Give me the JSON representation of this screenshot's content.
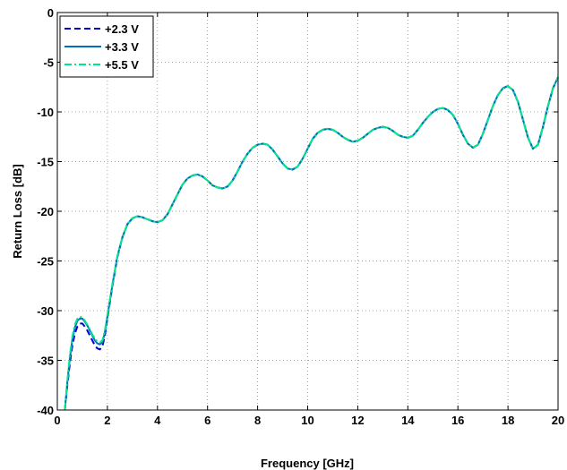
{
  "chart_data": {
    "type": "line",
    "title": "",
    "xlabel": "Frequency [GHz]",
    "ylabel": "Return Loss [dB]",
    "xlim": [
      0,
      20
    ],
    "ylim": [
      -40,
      0
    ],
    "xticks": [
      0,
      2,
      4,
      6,
      8,
      10,
      12,
      14,
      16,
      18,
      20
    ],
    "yticks": [
      0,
      -5,
      -10,
      -15,
      -20,
      -25,
      -30,
      -35,
      -40
    ],
    "grid": true,
    "legend_position": "top-left",
    "series": [
      {
        "name": "+2.3 V",
        "color": "#0000cc",
        "style": "dashed",
        "x": [
          0.3,
          0.4,
          0.5,
          0.6,
          0.7,
          0.8,
          0.9,
          1.0,
          1.1,
          1.2,
          1.3,
          1.4,
          1.5,
          1.6,
          1.7,
          1.8,
          1.9,
          2.0,
          2.2,
          2.4,
          2.6,
          2.8,
          3.0,
          3.2,
          3.4,
          3.6,
          3.8,
          4.0,
          4.2,
          4.4,
          4.6,
          4.8,
          5.0,
          5.2,
          5.4,
          5.6,
          5.8,
          6.0,
          6.2,
          6.4,
          6.6,
          6.8,
          7.0,
          7.2,
          7.4,
          7.6,
          7.8,
          8.0,
          8.2,
          8.4,
          8.6,
          8.8,
          9.0,
          9.2,
          9.4,
          9.6,
          9.8,
          10.0,
          10.2,
          10.4,
          10.6,
          10.8,
          11.0,
          11.2,
          11.4,
          11.6,
          11.8,
          12.0,
          12.2,
          12.4,
          12.6,
          12.8,
          13.0,
          13.2,
          13.4,
          13.6,
          13.8,
          14.0,
          14.2,
          14.4,
          14.6,
          14.8,
          15.0,
          15.2,
          15.4,
          15.6,
          15.8,
          16.0,
          16.2,
          16.4,
          16.6,
          16.8,
          17.0,
          17.2,
          17.4,
          17.6,
          17.8,
          18.0,
          18.2,
          18.4,
          18.6,
          18.8,
          19.0,
          19.2,
          19.4,
          19.6,
          19.8,
          20.0
        ],
        "y": [
          -40.0,
          -37.5,
          -35.3,
          -33.5,
          -32.3,
          -31.6,
          -31.3,
          -31.3,
          -31.6,
          -32.0,
          -32.5,
          -33.0,
          -33.5,
          -33.8,
          -33.9,
          -33.6,
          -32.5,
          -30.8,
          -27.5,
          -24.6,
          -22.6,
          -21.3,
          -20.7,
          -20.5,
          -20.6,
          -20.8,
          -21.0,
          -21.1,
          -20.9,
          -20.3,
          -19.3,
          -18.3,
          -17.3,
          -16.7,
          -16.4,
          -16.3,
          -16.5,
          -16.9,
          -17.4,
          -17.6,
          -17.7,
          -17.5,
          -16.9,
          -16.0,
          -15.0,
          -14.2,
          -13.6,
          -13.3,
          -13.2,
          -13.3,
          -13.8,
          -14.5,
          -15.2,
          -15.7,
          -15.8,
          -15.5,
          -14.7,
          -13.7,
          -12.7,
          -12.1,
          -11.8,
          -11.7,
          -11.8,
          -12.1,
          -12.5,
          -12.8,
          -13.0,
          -12.9,
          -12.6,
          -12.2,
          -11.8,
          -11.6,
          -11.5,
          -11.6,
          -11.9,
          -12.3,
          -12.5,
          -12.6,
          -12.4,
          -11.8,
          -11.1,
          -10.5,
          -10.0,
          -9.7,
          -9.6,
          -9.8,
          -10.3,
          -11.2,
          -12.3,
          -13.2,
          -13.6,
          -13.3,
          -12.2,
          -10.8,
          -9.4,
          -8.3,
          -7.6,
          -7.4,
          -7.8,
          -9.0,
          -10.8,
          -12.6,
          -13.7,
          -13.3,
          -11.5,
          -9.4,
          -7.6,
          -6.5
        ]
      },
      {
        "name": "+3.3 V",
        "color": "#0072bd",
        "style": "solid",
        "x": [
          0.3,
          0.4,
          0.5,
          0.6,
          0.7,
          0.8,
          0.9,
          1.0,
          1.1,
          1.2,
          1.3,
          1.4,
          1.5,
          1.6,
          1.7,
          1.8,
          1.9,
          2.0,
          2.2,
          2.4,
          2.6,
          2.8,
          3.0,
          3.2,
          3.4,
          3.6,
          3.8,
          4.0,
          4.2,
          4.4,
          4.6,
          4.8,
          5.0,
          5.2,
          5.4,
          5.6,
          5.8,
          6.0,
          6.2,
          6.4,
          6.6,
          6.8,
          7.0,
          7.2,
          7.4,
          7.6,
          7.8,
          8.0,
          8.2,
          8.4,
          8.6,
          8.8,
          9.0,
          9.2,
          9.4,
          9.6,
          9.8,
          10.0,
          10.2,
          10.4,
          10.6,
          10.8,
          11.0,
          11.2,
          11.4,
          11.6,
          11.8,
          12.0,
          12.2,
          12.4,
          12.6,
          12.8,
          13.0,
          13.2,
          13.4,
          13.6,
          13.8,
          14.0,
          14.2,
          14.4,
          14.6,
          14.8,
          15.0,
          15.2,
          15.4,
          15.6,
          15.8,
          16.0,
          16.2,
          16.4,
          16.6,
          16.8,
          17.0,
          17.2,
          17.4,
          17.6,
          17.8,
          18.0,
          18.2,
          18.4,
          18.6,
          18.8,
          19.0,
          19.2,
          19.4,
          19.6,
          19.8,
          20.0
        ],
        "y": [
          -40.0,
          -37.2,
          -34.8,
          -32.9,
          -31.7,
          -31.0,
          -30.8,
          -30.8,
          -31.1,
          -31.5,
          -32.0,
          -32.5,
          -33.0,
          -33.3,
          -33.4,
          -33.2,
          -32.2,
          -30.6,
          -27.4,
          -24.5,
          -22.6,
          -21.3,
          -20.7,
          -20.5,
          -20.6,
          -20.8,
          -21.0,
          -21.1,
          -20.9,
          -20.3,
          -19.3,
          -18.3,
          -17.3,
          -16.7,
          -16.4,
          -16.3,
          -16.5,
          -16.9,
          -17.4,
          -17.6,
          -17.7,
          -17.5,
          -16.9,
          -16.0,
          -15.0,
          -14.2,
          -13.6,
          -13.3,
          -13.2,
          -13.3,
          -13.8,
          -14.5,
          -15.2,
          -15.7,
          -15.8,
          -15.5,
          -14.7,
          -13.7,
          -12.7,
          -12.1,
          -11.8,
          -11.7,
          -11.8,
          -12.1,
          -12.5,
          -12.8,
          -13.0,
          -12.9,
          -12.6,
          -12.2,
          -11.8,
          -11.6,
          -11.5,
          -11.6,
          -11.9,
          -12.3,
          -12.5,
          -12.6,
          -12.4,
          -11.8,
          -11.1,
          -10.5,
          -10.0,
          -9.7,
          -9.6,
          -9.8,
          -10.3,
          -11.2,
          -12.3,
          -13.2,
          -13.6,
          -13.3,
          -12.2,
          -10.8,
          -9.4,
          -8.3,
          -7.6,
          -7.4,
          -7.8,
          -9.0,
          -10.8,
          -12.6,
          -13.7,
          -13.3,
          -11.5,
          -9.4,
          -7.6,
          -6.5
        ]
      },
      {
        "name": "+5.5 V",
        "color": "#00e68a",
        "style": "dashdot",
        "x": [
          0.3,
          0.4,
          0.5,
          0.6,
          0.7,
          0.8,
          0.9,
          1.0,
          1.1,
          1.2,
          1.3,
          1.4,
          1.5,
          1.6,
          1.7,
          1.8,
          1.9,
          2.0,
          2.2,
          2.4,
          2.6,
          2.8,
          3.0,
          3.2,
          3.4,
          3.6,
          3.8,
          4.0,
          4.2,
          4.4,
          4.6,
          4.8,
          5.0,
          5.2,
          5.4,
          5.6,
          5.8,
          6.0,
          6.2,
          6.4,
          6.6,
          6.8,
          7.0,
          7.2,
          7.4,
          7.6,
          7.8,
          8.0,
          8.2,
          8.4,
          8.6,
          8.8,
          9.0,
          9.2,
          9.4,
          9.6,
          9.8,
          10.0,
          10.2,
          10.4,
          10.6,
          10.8,
          11.0,
          11.2,
          11.4,
          11.6,
          11.8,
          12.0,
          12.2,
          12.4,
          12.6,
          12.8,
          13.0,
          13.2,
          13.4,
          13.6,
          13.8,
          14.0,
          14.2,
          14.4,
          14.6,
          14.8,
          15.0,
          15.2,
          15.4,
          15.6,
          15.8,
          16.0,
          16.2,
          16.4,
          16.6,
          16.8,
          17.0,
          17.2,
          17.4,
          17.6,
          17.8,
          18.0,
          18.2,
          18.4,
          18.6,
          18.8,
          19.0,
          19.2,
          19.4,
          19.6,
          19.8,
          20.0
        ],
        "y": [
          -40.0,
          -37.0,
          -34.5,
          -32.6,
          -31.4,
          -30.8,
          -30.6,
          -30.7,
          -31.0,
          -31.4,
          -31.9,
          -32.4,
          -32.8,
          -33.1,
          -33.2,
          -33.0,
          -32.0,
          -30.4,
          -27.3,
          -24.5,
          -22.6,
          -21.3,
          -20.7,
          -20.5,
          -20.6,
          -20.8,
          -21.0,
          -21.1,
          -20.9,
          -20.3,
          -19.3,
          -18.3,
          -17.3,
          -16.7,
          -16.4,
          -16.3,
          -16.5,
          -16.9,
          -17.4,
          -17.6,
          -17.7,
          -17.5,
          -16.9,
          -16.0,
          -15.0,
          -14.2,
          -13.6,
          -13.3,
          -13.2,
          -13.3,
          -13.8,
          -14.5,
          -15.2,
          -15.7,
          -15.8,
          -15.5,
          -14.7,
          -13.7,
          -12.7,
          -12.1,
          -11.8,
          -11.7,
          -11.8,
          -12.1,
          -12.5,
          -12.8,
          -13.0,
          -12.9,
          -12.6,
          -12.2,
          -11.8,
          -11.6,
          -11.5,
          -11.6,
          -11.9,
          -12.3,
          -12.5,
          -12.6,
          -12.4,
          -11.8,
          -11.1,
          -10.5,
          -10.0,
          -9.7,
          -9.6,
          -9.8,
          -10.3,
          -11.2,
          -12.3,
          -13.2,
          -13.6,
          -13.3,
          -12.2,
          -10.8,
          -9.4,
          -8.3,
          -7.6,
          -7.4,
          -7.8,
          -9.0,
          -10.8,
          -12.6,
          -13.7,
          -13.3,
          -11.5,
          -9.4,
          -7.6,
          -6.5
        ]
      }
    ]
  }
}
